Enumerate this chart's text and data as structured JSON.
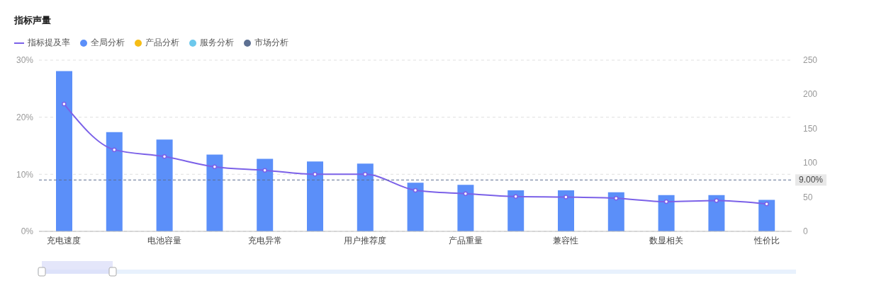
{
  "chart_data": {
    "type": "bar",
    "title": "指标声量",
    "categories": [
      "充电速度",
      null,
      "电池容量",
      null,
      "充电异常",
      null,
      "用户推荐度",
      null,
      "产品重量",
      null,
      "兼容性",
      null,
      "数显相关",
      null,
      "性价比"
    ],
    "series": [
      {
        "name": "指标提及率",
        "type": "line",
        "axis": "y",
        "color": "#7b61e8",
        "values": [
          22.3,
          14.3,
          13.1,
          11.3,
          10.7,
          10.0,
          10.0,
          7.2,
          6.6,
          6.1,
          6.0,
          5.8,
          5.2,
          5.4,
          4.8
        ]
      },
      {
        "name": "全局分析",
        "axis": "y2",
        "color": "#5b8ff9",
        "values": [
          234,
          145,
          134,
          112,
          106,
          102,
          99,
          71,
          68,
          60,
          60,
          57,
          53,
          53,
          46
        ]
      },
      {
        "name": "产品分析",
        "axis": "y2",
        "color": "#f6bd16",
        "values": [
          null,
          null,
          null,
          null,
          null,
          null,
          null,
          null,
          null,
          null,
          null,
          null,
          null,
          null,
          null
        ]
      },
      {
        "name": "服务分析",
        "axis": "y2",
        "color": "#6dc8ec",
        "values": [
          null,
          null,
          null,
          null,
          null,
          null,
          null,
          null,
          null,
          null,
          null,
          null,
          null,
          null,
          null
        ]
      },
      {
        "name": "市场分析",
        "axis": "y2",
        "color": "#5d7092",
        "values": [
          null,
          null,
          null,
          null,
          null,
          null,
          null,
          null,
          null,
          null,
          null,
          null,
          null,
          null,
          null
        ]
      }
    ],
    "stacked": true,
    "ylim": [
      0,
      30
    ],
    "yticks": [
      {
        "value": 0,
        "label": "0%"
      },
      {
        "value": 10,
        "label": "10%"
      },
      {
        "value": 20,
        "label": "20%"
      },
      {
        "value": 30,
        "label": "30%"
      }
    ],
    "y2lim": [
      0,
      250
    ],
    "y2ticks": [
      0,
      50,
      100,
      150,
      200,
      250
    ],
    "ref_lines": [
      {
        "axis": "y",
        "value": 9,
        "label": "9.00%",
        "color": "#5d7092",
        "line_style": "dashed"
      }
    ],
    "grid": "y",
    "legend": "top left",
    "marker": "circle"
  }
}
